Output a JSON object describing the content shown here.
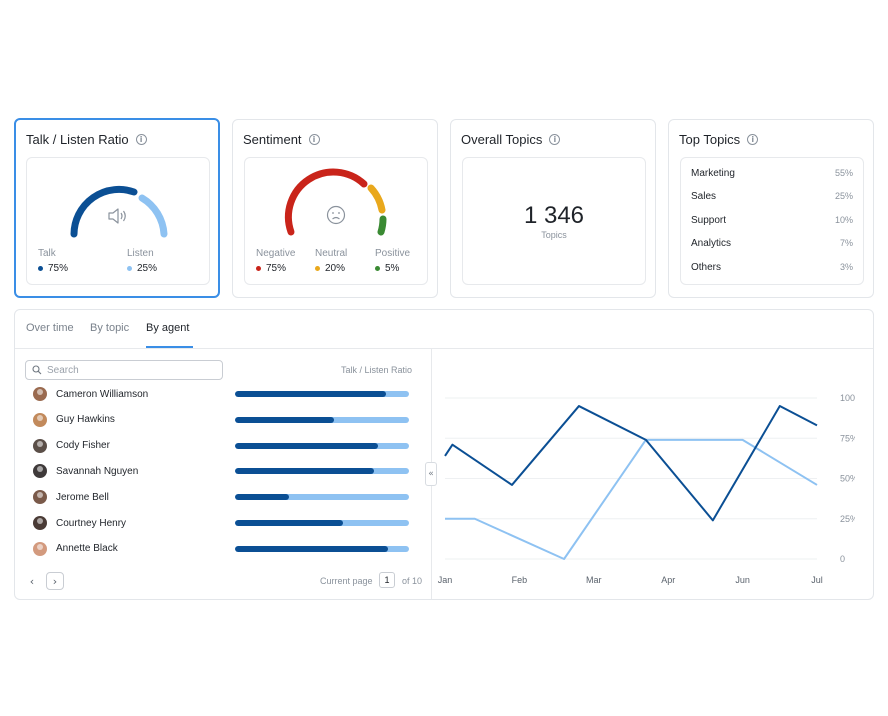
{
  "talk_listen": {
    "title": "Talk / Listen Ratio",
    "icon": "speaker-icon",
    "items": [
      {
        "label": "Talk",
        "value": "75%",
        "color": "#0b4f94"
      },
      {
        "label": "Listen",
        "value": "25%",
        "color": "#8ec2f2"
      }
    ]
  },
  "sentiment": {
    "title": "Sentiment",
    "icon": "sad-face-icon",
    "items": [
      {
        "label": "Negative",
        "value": "75%",
        "color": "#c9241a"
      },
      {
        "label": "Neutral",
        "value": "20%",
        "color": "#e9a81c"
      },
      {
        "label": "Positive",
        "value": "5%",
        "color": "#3a8a33"
      }
    ]
  },
  "overall_topics": {
    "title": "Overall Topics",
    "value": "1 346",
    "caption": "Topics"
  },
  "top_topics": {
    "title": "Top Topics",
    "items": [
      {
        "name": "Marketing",
        "pct": "55%"
      },
      {
        "name": "Sales",
        "pct": "25%"
      },
      {
        "name": "Support",
        "pct": "10%"
      },
      {
        "name": "Analytics",
        "pct": "7%"
      },
      {
        "name": "Others",
        "pct": "3%"
      }
    ]
  },
  "tabs": [
    {
      "label": "Over time",
      "active": false
    },
    {
      "label": "By topic",
      "active": false
    },
    {
      "label": "By agent",
      "active": true
    }
  ],
  "search": {
    "placeholder": "Search"
  },
  "ratio_column_label": "Talk / Listen Ratio",
  "agents": [
    {
      "name": "Cameron Williamson",
      "talk": 0.87,
      "avatar_color": "#9a6a4f"
    },
    {
      "name": "Guy Hawkins",
      "talk": 0.57,
      "avatar_color": "#c28a5c"
    },
    {
      "name": "Cody Fisher",
      "talk": 0.82,
      "avatar_color": "#5b4f48"
    },
    {
      "name": "Savannah Nguyen",
      "talk": 0.8,
      "avatar_color": "#3f3a3a"
    },
    {
      "name": "Jerome Bell",
      "talk": 0.31,
      "avatar_color": "#7a5a4a"
    },
    {
      "name": "Courtney Henry",
      "talk": 0.62,
      "avatar_color": "#4a3b36"
    },
    {
      "name": "Annette Black",
      "talk": 0.88,
      "avatar_color": "#d39a7e"
    }
  ],
  "pagination": {
    "label": "Current page",
    "page": "1",
    "of_label": "of 10"
  },
  "chart_data": {
    "type": "line",
    "x": [
      "Jan",
      "Feb",
      "Mar",
      "Apr",
      "Jun",
      "Jul"
    ],
    "y_ticks": [
      "100%",
      "75%",
      "50%",
      "25%",
      "0"
    ],
    "ylim": [
      0,
      100
    ],
    "grid": true,
    "series": [
      {
        "color": "#0b4f94",
        "points": [
          [
            0,
            64
          ],
          [
            0.1,
            71
          ],
          [
            0.9,
            46
          ],
          [
            1.8,
            95
          ],
          [
            2.7,
            74
          ],
          [
            3.6,
            24
          ],
          [
            4.5,
            95
          ],
          [
            5.0,
            83
          ]
        ]
      },
      {
        "color": "#8ec2f2",
        "points": [
          [
            0,
            25
          ],
          [
            0.4,
            25
          ],
          [
            1.6,
            0
          ],
          [
            2.7,
            74
          ],
          [
            4.0,
            74
          ],
          [
            5.0,
            46
          ]
        ]
      }
    ]
  }
}
